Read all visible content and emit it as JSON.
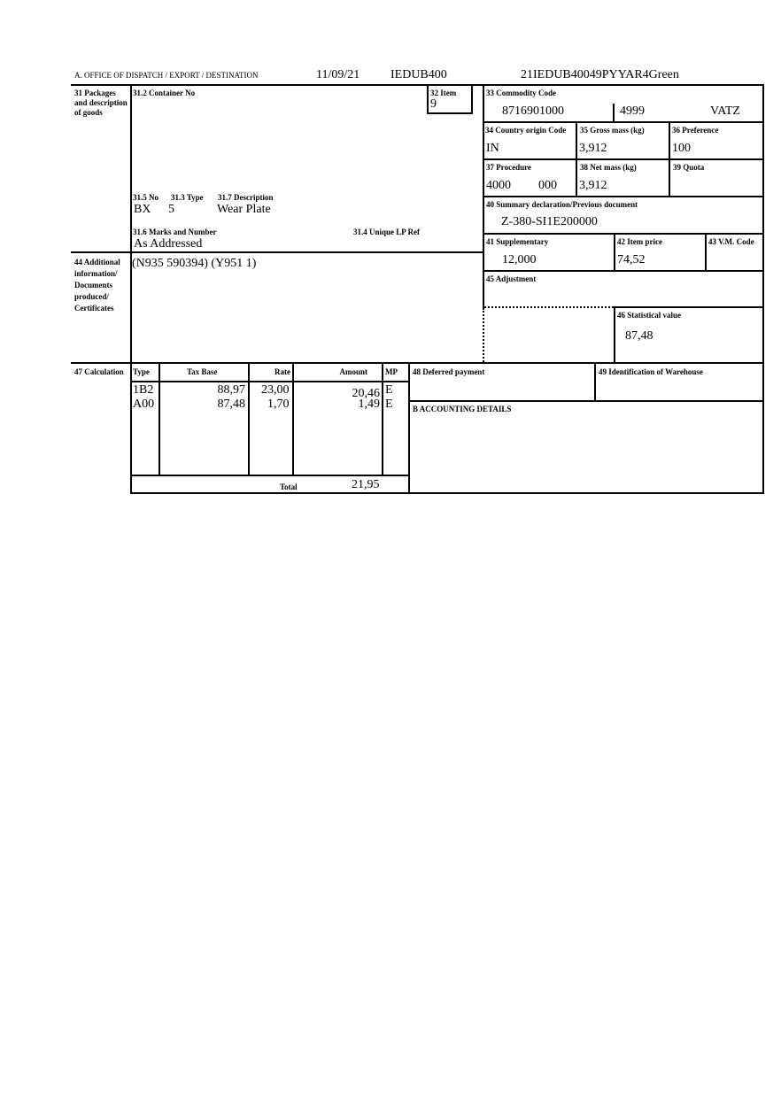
{
  "header": {
    "office_label": "A. OFFICE OF DISPATCH / EXPORT / DESTINATION",
    "date": "11/09/21",
    "office_code": "IEDUB400",
    "reference": "21IEDUB40049PYYAR4Green"
  },
  "box31": {
    "label": "31 Packages and description of goods",
    "container_label": "31.2 Container No",
    "no_label": "31.5 No",
    "type_label": "31.3 Type",
    "desc_label": "31.7 Description",
    "no": "BX",
    "type": "5",
    "description": "Wear Plate",
    "marks_label": "31.6 Marks and Number",
    "marks": "As Addressed",
    "unique_label": "31.4 Unique LP Ref"
  },
  "box32": {
    "label": "32 Item",
    "value": "9"
  },
  "box33": {
    "label": "33 Commodity Code",
    "code": "8716901000",
    "additional": "4999",
    "national": "VATZ"
  },
  "box34": {
    "label": "34 Country origin Code",
    "value": "IN"
  },
  "box35": {
    "label": "35 Gross mass (kg)",
    "value": "3,912"
  },
  "box36": {
    "label": "36 Preference",
    "value": "100"
  },
  "box37": {
    "label": "37 Procedure",
    "value1": "4000",
    "value2": "000"
  },
  "box38": {
    "label": "38 Net mass (kg)",
    "value": "3,912"
  },
  "box39": {
    "label": "39 Quota"
  },
  "box40": {
    "label": "40 Summary declaration/Previous document",
    "value": "Z-380-SI1E200000"
  },
  "box41": {
    "label": "41 Supplementary",
    "value": "12,000"
  },
  "box42": {
    "label": "42 Item price",
    "value": "74,52"
  },
  "box43": {
    "label": "43 V.M. Code"
  },
  "box44": {
    "label": "44 Additional information/ Documents produced/ Certificates",
    "value": "(N935 590394) (Y951 1)"
  },
  "box45": {
    "label": "45 Adjustment"
  },
  "box46": {
    "label": "46 Statistical value",
    "value": "87,48"
  },
  "box47": {
    "label": "47 Calculation",
    "headers": [
      "Type",
      "Tax Base",
      "Rate",
      "Amount",
      "MP"
    ],
    "rows": [
      [
        "1B2",
        "88,97",
        "23,00",
        "20,46",
        "E"
      ],
      [
        "A00",
        "87,48",
        "1,70",
        "1,49",
        "E"
      ]
    ],
    "total_label": "Total",
    "total": "21,95"
  },
  "box48": {
    "label": "48 Deferred payment"
  },
  "box49": {
    "label": "49 Identification of Warehouse"
  },
  "boxB": {
    "label": "B ACCOUNTING DETAILS"
  }
}
